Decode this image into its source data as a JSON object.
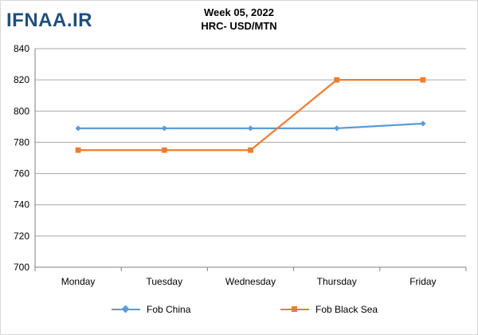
{
  "watermark": "IFNAA.IR",
  "colors": {
    "china": "#5b9bd5",
    "black_sea": "#ed7d31",
    "grid": "#a6a6a6",
    "axis": "#7f7f7f"
  },
  "chart_data": {
    "type": "line",
    "title": "Week 05, 2022",
    "subtitle": "HRC- USD/MTN",
    "categories": [
      "Monday",
      "Tuesday",
      "Wednesday",
      "Thursday",
      "Friday"
    ],
    "series": [
      {
        "name": "Fob China",
        "values": [
          789,
          789,
          789,
          789,
          792
        ],
        "color": "#5b9bd5",
        "marker": "diamond"
      },
      {
        "name": "Fob Black Sea",
        "values": [
          775,
          775,
          775,
          820,
          820
        ],
        "color": "#ed7d31",
        "marker": "square"
      }
    ],
    "ylim": [
      700,
      840
    ],
    "yticks": [
      700,
      720,
      740,
      760,
      780,
      800,
      820,
      840
    ],
    "grid": true,
    "legend": "bottom"
  }
}
